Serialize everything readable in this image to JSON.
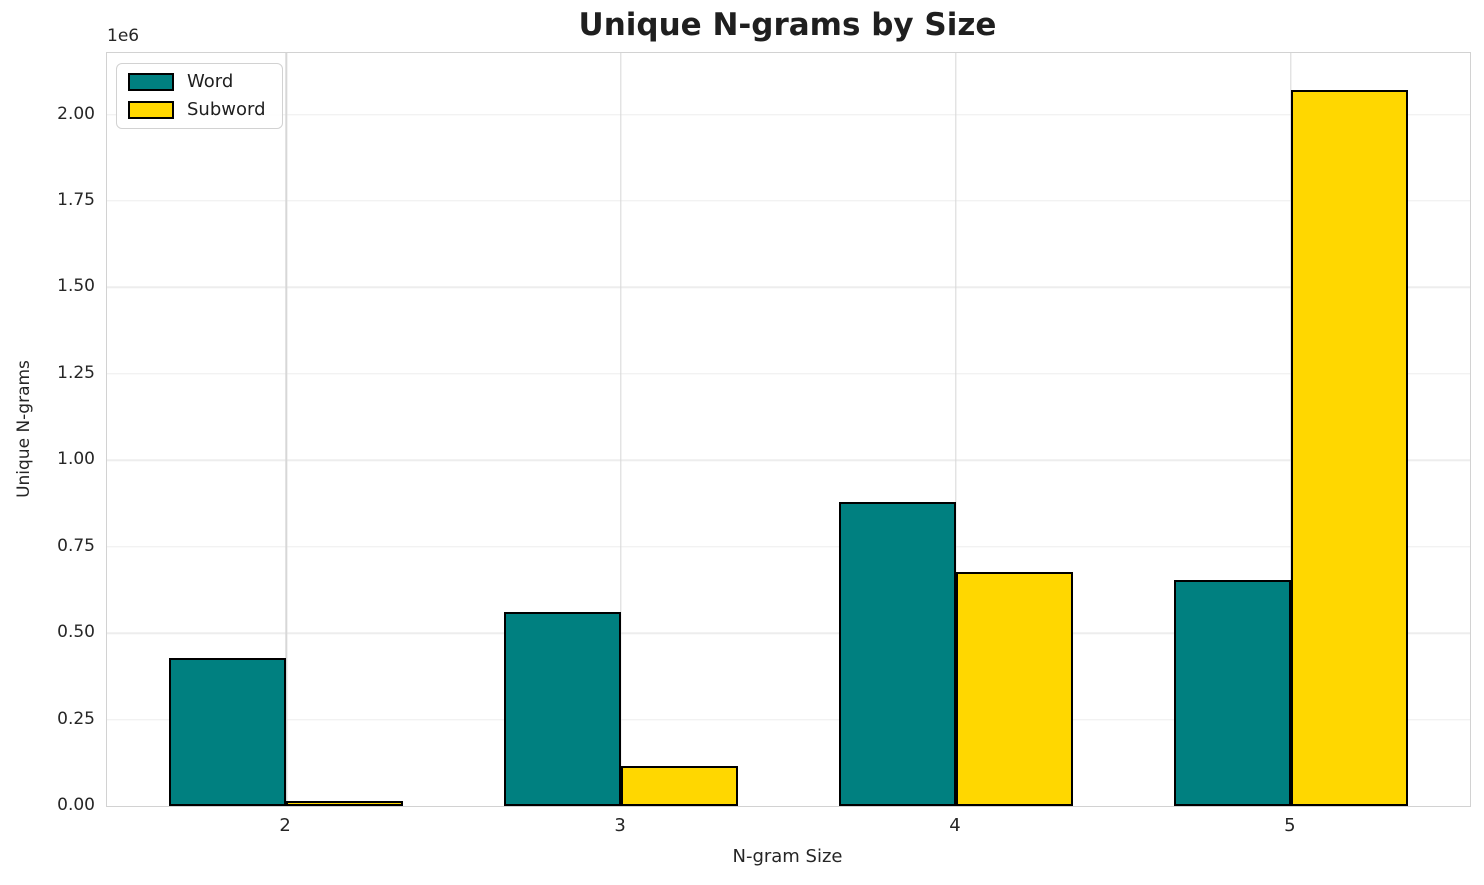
{
  "title": "Unique N-grams by Size",
  "axes": {
    "xlabel": "N-gram Size",
    "ylabel": "Unique N-grams",
    "offset_label": "1e6"
  },
  "legend": {
    "items": [
      {
        "label": "Word",
        "color": "#008080"
      },
      {
        "label": "Subword",
        "color": "#FFD700"
      }
    ]
  },
  "colors": {
    "word": "#008080",
    "subword": "#FFD700",
    "bar_edge": "#000000",
    "grid_horizontal": "#ededed",
    "grid_vertical": "#d7d7d7",
    "plot_border": "#d2d2d2",
    "text": "#262626"
  },
  "chart_data": {
    "type": "bar",
    "title": "Unique N-grams by Size",
    "xlabel": "N-gram Size",
    "ylabel": "Unique N-grams",
    "categories": [
      "2",
      "3",
      "4",
      "5"
    ],
    "series": [
      {
        "name": "Word",
        "color": "#008080",
        "values": [
          427000,
          560000,
          878000,
          654000
        ]
      },
      {
        "name": "Subword",
        "color": "#FFD700",
        "values": [
          14000,
          115000,
          678000,
          2071000
        ]
      }
    ],
    "ylim": [
      0,
      2178000
    ],
    "xlim_units": [
      -0.535,
      3.535
    ],
    "yticks": [
      0,
      250000,
      500000,
      750000,
      1000000,
      1250000,
      1500000,
      1750000,
      2000000
    ],
    "ytick_labels": [
      "0.00",
      "0.25",
      "0.50",
      "0.75",
      "1.00",
      "1.25",
      "1.50",
      "1.75",
      "2.00"
    ],
    "offset_text": "1e6",
    "grid": true,
    "legend_position": "upper left",
    "bar_width_fraction": 0.35,
    "bar_edge_color": "#000000"
  }
}
